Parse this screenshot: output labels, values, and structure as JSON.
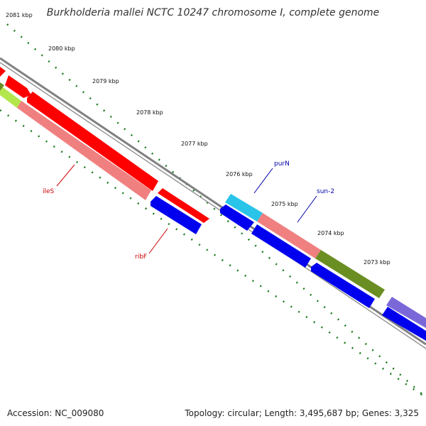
{
  "title": "Burkholderia mallei NCTC 10247 chromosome I, complete genome",
  "accession": "Accession: NC_009080",
  "summary": "Topology: circular; Length: 3,495,687 bp; Genes: 3,325",
  "colors": {
    "backbone": "#808080",
    "tick": "#1a7a1a",
    "gene_red": "#ff0000",
    "gene_pink": "#f08080",
    "gene_blue": "#0000ee",
    "gene_cyan": "#29c4e8",
    "gene_olive": "#6b8e23",
    "gene_lime": "#b3e64d",
    "gene_purple": "#7b68d8",
    "label_red": "#cc0000",
    "label_blue": "#0000aa"
  },
  "scale_labels": [
    "2081 kbp",
    "2080 kbp",
    "2079 kbp",
    "2078 kbp",
    "2077 kbp",
    "2076 kbp",
    "2075 kbp",
    "2074 kbp",
    "2073 kbp"
  ],
  "gene_labels": [
    {
      "name": "ileS",
      "color": "label_red"
    },
    {
      "name": "ribF",
      "color": "label_red"
    },
    {
      "name": "purN",
      "color": "label_blue"
    },
    {
      "name": "sun-2",
      "color": "label_blue"
    }
  ]
}
